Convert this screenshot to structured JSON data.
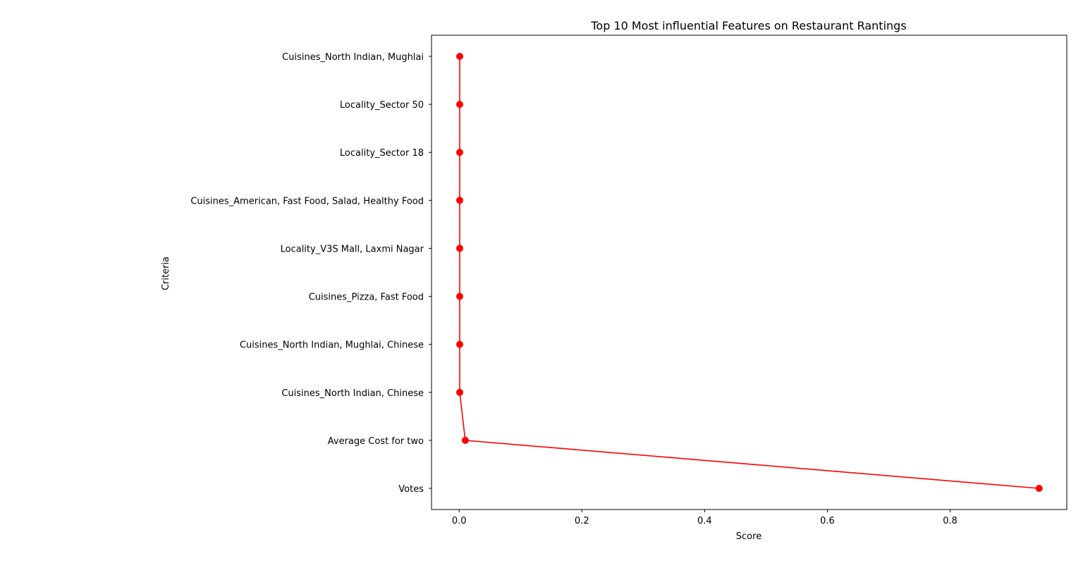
{
  "chart_data": {
    "type": "line",
    "title": "Top 10 Most influential Features on Restaurant Rantings",
    "xlabel": "Score",
    "ylabel": "Criteria",
    "xlim": [
      -0.045,
      0.99
    ],
    "xticks": [
      0.0,
      0.2,
      0.4,
      0.6,
      0.8
    ],
    "xtick_labels": [
      "0.0",
      "0.2",
      "0.4",
      "0.6",
      "0.8"
    ],
    "categories": [
      "Votes",
      "Average Cost for two",
      "Cuisines_North Indian, Chinese",
      "Cuisines_North Indian, Mughlai, Chinese",
      "Cuisines_Pizza, Fast Food",
      "Locality_V3S Mall, Laxmi Nagar",
      "Cuisines_American, Fast Food, Salad, Healthy Food",
      "Locality_Sector 18",
      "Locality_Sector 50",
      "Cuisines_North Indian, Mughlai"
    ],
    "values": [
      0.945,
      0.01,
      0.001,
      0.001,
      0.001,
      0.001,
      0.001,
      0.001,
      0.001,
      0.001
    ],
    "grid": false,
    "series_color": "#ff0000",
    "marker": "circle"
  }
}
